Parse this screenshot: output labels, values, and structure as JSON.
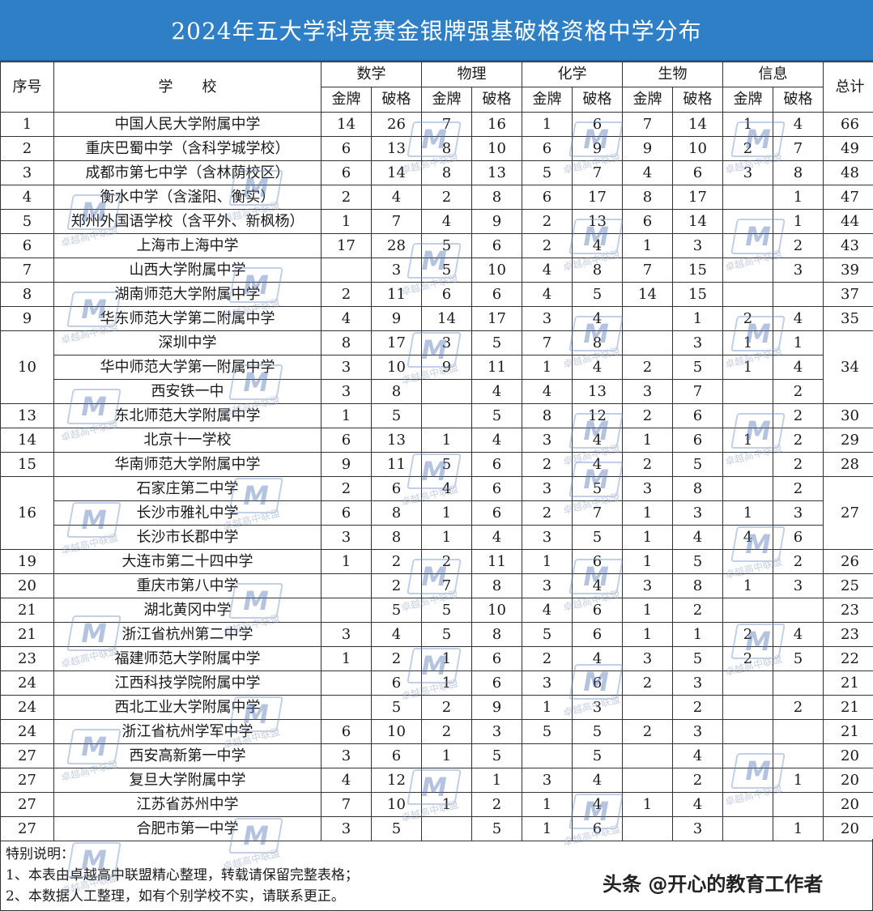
{
  "title": "2024年五大学科竞赛金银牌强基破格资格中学分布",
  "header": {
    "rank": "序号",
    "school": "学　　校",
    "subjects": [
      "数学",
      "物理",
      "化学",
      "生物",
      "信息"
    ],
    "gold": "金牌",
    "breakthrough": "破格",
    "total": "总计"
  },
  "rows": [
    {
      "rank": "1",
      "school": "中国人民大学附属中学",
      "v": [
        "14",
        "26",
        "7",
        "16",
        "1",
        "6",
        "7",
        "14",
        "1",
        "4"
      ],
      "total": "66"
    },
    {
      "rank": "2",
      "school": "重庆巴蜀中学（含科学城学校）",
      "v": [
        "6",
        "13",
        "8",
        "10",
        "6",
        "9",
        "9",
        "10",
        "2",
        "7"
      ],
      "total": "49"
    },
    {
      "rank": "3",
      "school": "成都市第七中学（含林荫校区）",
      "v": [
        "6",
        "14",
        "8",
        "13",
        "5",
        "7",
        "4",
        "6",
        "3",
        "8"
      ],
      "total": "48"
    },
    {
      "rank": "4",
      "school": "衡水中学（含滏阳、衡实）",
      "v": [
        "2",
        "4",
        "2",
        "8",
        "6",
        "17",
        "8",
        "17",
        "",
        "1"
      ],
      "total": "47"
    },
    {
      "rank": "5",
      "school": "郑州外国语学校（含平外、新枫杨）",
      "v": [
        "1",
        "7",
        "4",
        "9",
        "2",
        "13",
        "6",
        "14",
        "",
        "1"
      ],
      "total": "44"
    },
    {
      "rank": "6",
      "school": "上海市上海中学",
      "v": [
        "17",
        "28",
        "5",
        "6",
        "2",
        "4",
        "1",
        "3",
        "",
        "2"
      ],
      "total": "43"
    },
    {
      "rank": "7",
      "school": "山西大学附属中学",
      "v": [
        "",
        "3",
        "5",
        "10",
        "4",
        "8",
        "7",
        "15",
        "",
        "3"
      ],
      "total": "39"
    },
    {
      "rank": "8",
      "school": "湖南师范大学附属中学",
      "v": [
        "2",
        "11",
        "6",
        "6",
        "4",
        "5",
        "14",
        "15",
        "",
        ""
      ],
      "total": "37"
    },
    {
      "rank": "9",
      "school": "华东师范大学第二附属中学",
      "v": [
        "4",
        "9",
        "14",
        "17",
        "3",
        "4",
        "",
        "1",
        "2",
        "4"
      ],
      "total": "35"
    },
    {
      "rank": "10",
      "school": "深圳中学",
      "v": [
        "8",
        "17",
        "3",
        "5",
        "7",
        "8",
        "",
        "3",
        "1",
        "1"
      ],
      "total": "34"
    },
    {
      "rank": "",
      "school": "华中师范大学第一附属中学",
      "v": [
        "3",
        "10",
        "9",
        "11",
        "1",
        "4",
        "2",
        "5",
        "1",
        "4"
      ],
      "total": ""
    },
    {
      "rank": "",
      "school": "西安铁一中",
      "v": [
        "3",
        "8",
        "",
        "4",
        "4",
        "13",
        "3",
        "7",
        "",
        "2"
      ],
      "total": ""
    },
    {
      "rank": "13",
      "school": "东北师范大学附属中学",
      "v": [
        "1",
        "5",
        "",
        "5",
        "8",
        "12",
        "2",
        "6",
        "",
        "2"
      ],
      "total": "30"
    },
    {
      "rank": "14",
      "school": "北京十一学校",
      "v": [
        "6",
        "13",
        "1",
        "4",
        "3",
        "4",
        "1",
        "6",
        "1",
        "2"
      ],
      "total": "29"
    },
    {
      "rank": "15",
      "school": "华南师范大学附属中学",
      "v": [
        "9",
        "11",
        "5",
        "6",
        "2",
        "4",
        "2",
        "5",
        "",
        "2"
      ],
      "total": "28"
    },
    {
      "rank": "16",
      "school": "石家庄第二中学",
      "v": [
        "2",
        "6",
        "4",
        "6",
        "3",
        "5",
        "3",
        "8",
        "",
        "2"
      ],
      "total": "27"
    },
    {
      "rank": "",
      "school": "长沙市雅礼中学",
      "v": [
        "6",
        "8",
        "1",
        "6",
        "2",
        "7",
        "1",
        "3",
        "1",
        "3"
      ],
      "total": "27"
    },
    {
      "rank": "",
      "school": "长沙市长郡中学",
      "v": [
        "3",
        "8",
        "1",
        "4",
        "3",
        "5",
        "1",
        "4",
        "4",
        "6"
      ],
      "total": "27"
    },
    {
      "rank": "19",
      "school": "大连市第二十四中学",
      "v": [
        "1",
        "2",
        "2",
        "11",
        "1",
        "6",
        "1",
        "5",
        "",
        "2"
      ],
      "total": "26"
    },
    {
      "rank": "20",
      "school": "重庆市第八中学",
      "v": [
        "",
        "2",
        "7",
        "8",
        "3",
        "4",
        "3",
        "8",
        "1",
        "3"
      ],
      "total": "25"
    },
    {
      "rank": "21",
      "school": "湖北黄冈中学",
      "v": [
        "",
        "5",
        "5",
        "10",
        "4",
        "6",
        "1",
        "2",
        "",
        ""
      ],
      "total": "23"
    },
    {
      "rank": "21",
      "school": "浙江省杭州第二中学",
      "v": [
        "3",
        "4",
        "5",
        "8",
        "5",
        "6",
        "1",
        "1",
        "2",
        "4"
      ],
      "total": "23"
    },
    {
      "rank": "23",
      "school": "福建师范大学附属中学",
      "v": [
        "1",
        "2",
        "1",
        "6",
        "2",
        "4",
        "3",
        "5",
        "2",
        "5"
      ],
      "total": "22"
    },
    {
      "rank": "24",
      "school": "江西科技学院附属中学",
      "v": [
        "",
        "6",
        "1",
        "6",
        "3",
        "6",
        "2",
        "3",
        "",
        ""
      ],
      "total": "21"
    },
    {
      "rank": "24",
      "school": "西北工业大学附属中学",
      "v": [
        "",
        "5",
        "2",
        "9",
        "1",
        "3",
        "",
        "2",
        "",
        "2"
      ],
      "total": "21"
    },
    {
      "rank": "24",
      "school": "浙江省杭州学军中学",
      "v": [
        "6",
        "10",
        "2",
        "3",
        "5",
        "5",
        "2",
        "3",
        "",
        ""
      ],
      "total": "21"
    },
    {
      "rank": "27",
      "school": "西安高新第一中学",
      "v": [
        "3",
        "6",
        "1",
        "5",
        "",
        "5",
        "",
        "4",
        "",
        ""
      ],
      "total": "20"
    },
    {
      "rank": "27",
      "school": "复旦大学附属中学",
      "v": [
        "4",
        "12",
        "",
        "1",
        "3",
        "4",
        "",
        "2",
        "",
        "1"
      ],
      "total": "20"
    },
    {
      "rank": "27",
      "school": "江苏省苏州中学",
      "v": [
        "7",
        "10",
        "1",
        "2",
        "1",
        "4",
        "1",
        "4",
        "",
        ""
      ],
      "total": "20"
    },
    {
      "rank": "27",
      "school": "合肥市第一中学",
      "v": [
        "3",
        "5",
        "",
        "5",
        "1",
        "6",
        "",
        "3",
        "",
        "1"
      ],
      "total": "20"
    }
  ],
  "notes": {
    "heading": "特别说明：",
    "line1": "1、本表由卓越高中联盟精心整理，转载请保留完整表格；",
    "line2": "2、本数据人工整理，如有个别学校不实，请联系更正。"
  },
  "credit": "头条 @开心的教育工作者",
  "watermark": {
    "logo": "M",
    "text": "卓越高中联盟"
  }
}
